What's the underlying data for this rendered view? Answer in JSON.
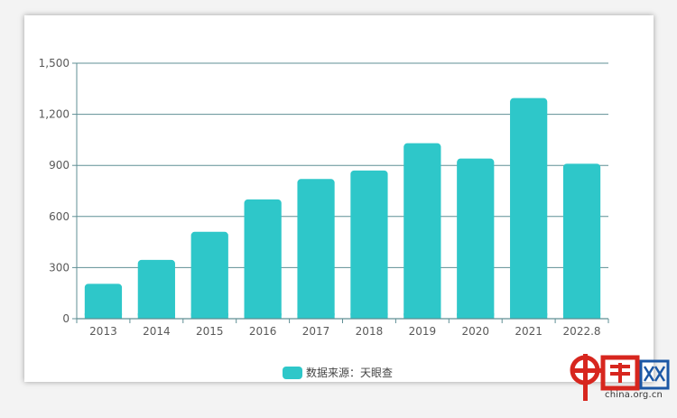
{
  "chart_data": {
    "type": "bar",
    "categories": [
      "2013",
      "2014",
      "2015",
      "2016",
      "2017",
      "2018",
      "2019",
      "2020",
      "2021",
      "2022.8"
    ],
    "series": [
      {
        "name": "数据来源：天眼查",
        "color": "#2ec7c9",
        "values": [
          205,
          345,
          510,
          700,
          820,
          870,
          1030,
          940,
          1295,
          910
        ]
      }
    ],
    "y_ticks": [
      "0",
      "300",
      "600",
      "900",
      "1,200",
      "1,500"
    ],
    "ylim": [
      0,
      1500
    ],
    "grid": true,
    "legend_position": "bottom-center"
  },
  "watermark": {
    "url": "china.org.cn",
    "logo_text": "中国网"
  }
}
